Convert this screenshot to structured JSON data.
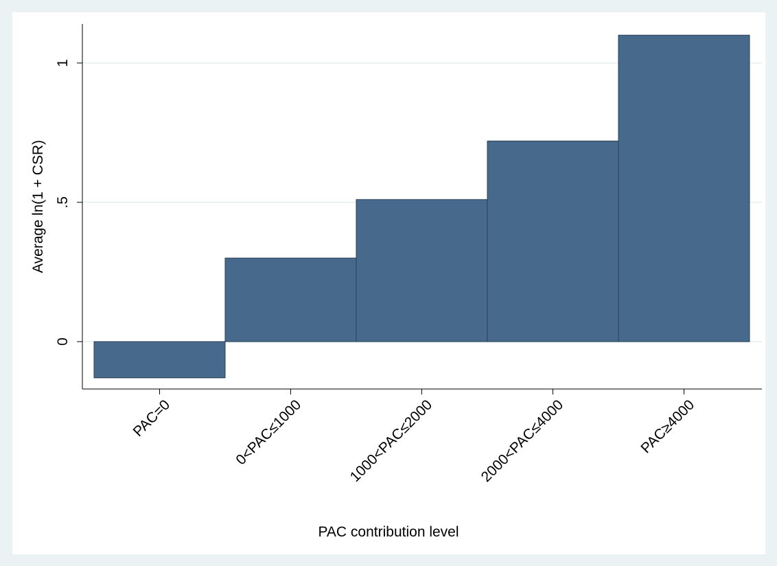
{
  "chart_data": {
    "type": "bar",
    "y_label": "Average ln(1 + CSR)",
    "x_label": "PAC contribution level",
    "categories": [
      "PAC=0",
      "0<PAC≤1000",
      "1000<PAC≤2000",
      "2000<PAC≤4000",
      "PAC≥4000"
    ],
    "values": [
      -0.13,
      0.3,
      0.51,
      0.72,
      1.1
    ],
    "color": "#476a8c",
    "ylim": [
      -0.17,
      1.14
    ],
    "yticks": [
      0,
      {
        "value": 0.5,
        "label": ".5"
      },
      1
    ],
    "grid": true
  }
}
